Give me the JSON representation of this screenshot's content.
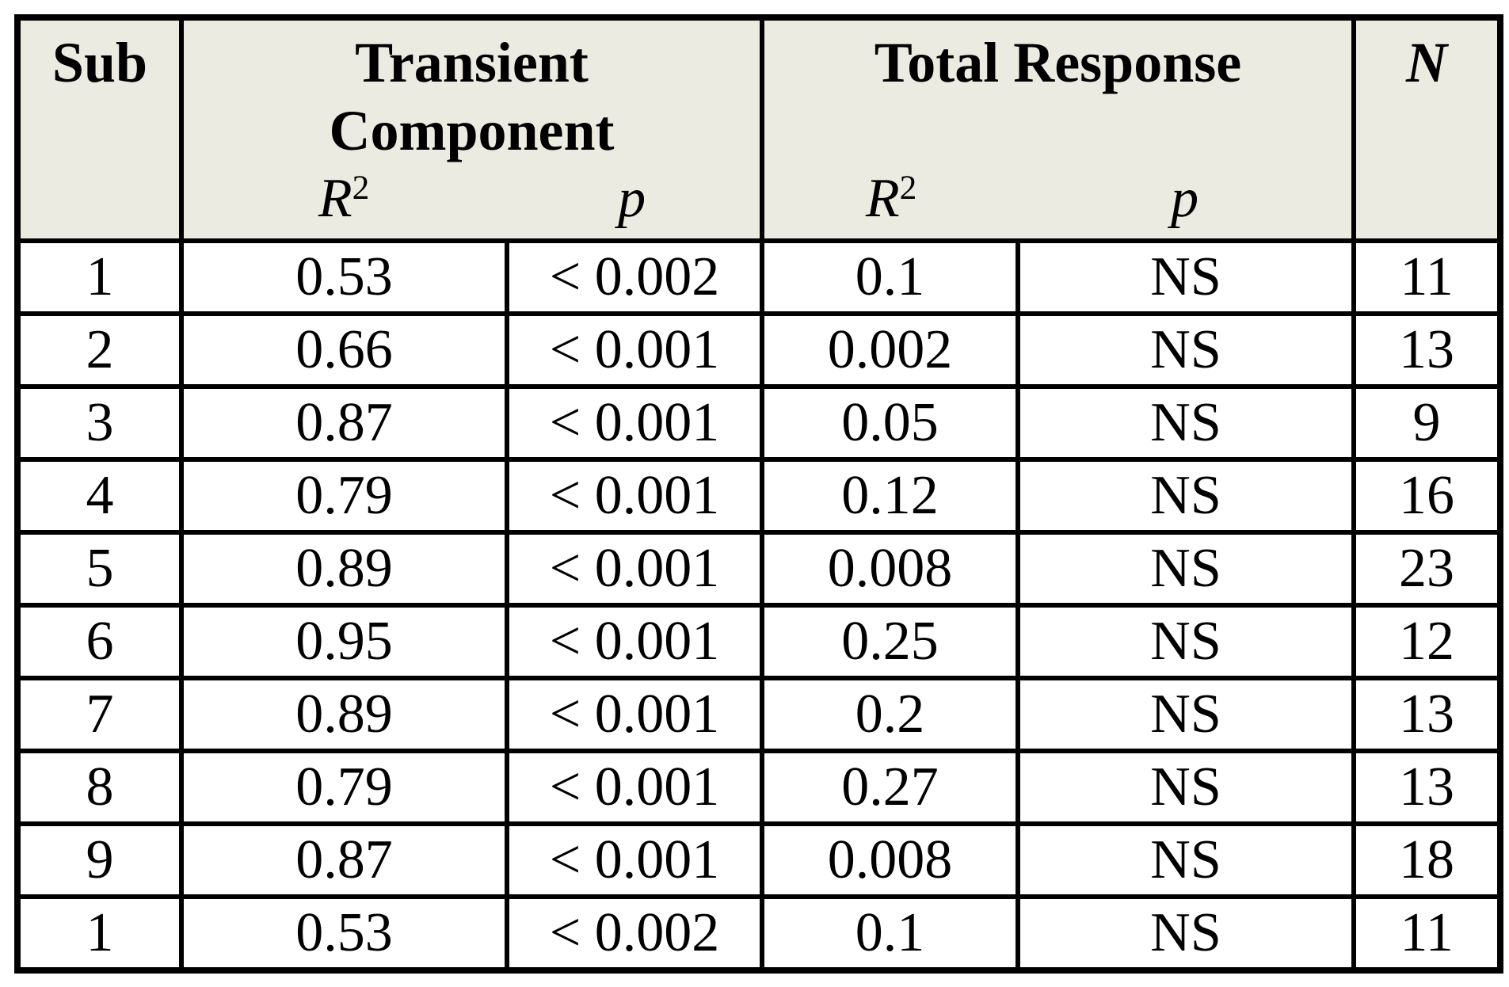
{
  "colors": {
    "header_bg": "#ecebe1",
    "border": "#000000",
    "page_bg": "#ffffff",
    "text": "#000000"
  },
  "table": {
    "header": {
      "sub_label": "Sub",
      "transient_line1": "Transient",
      "transient_line2": "Component",
      "total_label": "Total Response",
      "n_label": "N",
      "r_base": "R",
      "r_sup": "2",
      "p_label": "p"
    },
    "rows": [
      {
        "sub": "1",
        "t_r2": "0.53",
        "t_p": "< 0.002",
        "tot_r2": "0.1",
        "tot_p": "NS",
        "n": "11"
      },
      {
        "sub": "2",
        "t_r2": "0.66",
        "t_p": "< 0.001",
        "tot_r2": "0.002",
        "tot_p": "NS",
        "n": "13"
      },
      {
        "sub": "3",
        "t_r2": "0.87",
        "t_p": "< 0.001",
        "tot_r2": "0.05",
        "tot_p": "NS",
        "n": "9"
      },
      {
        "sub": "4",
        "t_r2": "0.79",
        "t_p": "< 0.001",
        "tot_r2": "0.12",
        "tot_p": "NS",
        "n": "16"
      },
      {
        "sub": "5",
        "t_r2": "0.89",
        "t_p": "< 0.001",
        "tot_r2": "0.008",
        "tot_p": "NS",
        "n": "23"
      },
      {
        "sub": "6",
        "t_r2": "0.95",
        "t_p": "< 0.001",
        "tot_r2": "0.25",
        "tot_p": "NS",
        "n": "12"
      },
      {
        "sub": "7",
        "t_r2": "0.89",
        "t_p": "< 0.001",
        "tot_r2": "0.2",
        "tot_p": "NS",
        "n": "13"
      },
      {
        "sub": "8",
        "t_r2": "0.79",
        "t_p": "< 0.001",
        "tot_r2": "0.27",
        "tot_p": "NS",
        "n": "13"
      },
      {
        "sub": "9",
        "t_r2": "0.87",
        "t_p": "< 0.001",
        "tot_r2": "0.008",
        "tot_p": "NS",
        "n": "18"
      },
      {
        "sub": "1",
        "t_r2": "0.53",
        "t_p": "< 0.002",
        "tot_r2": "0.1",
        "tot_p": "NS",
        "n": "11"
      }
    ]
  }
}
